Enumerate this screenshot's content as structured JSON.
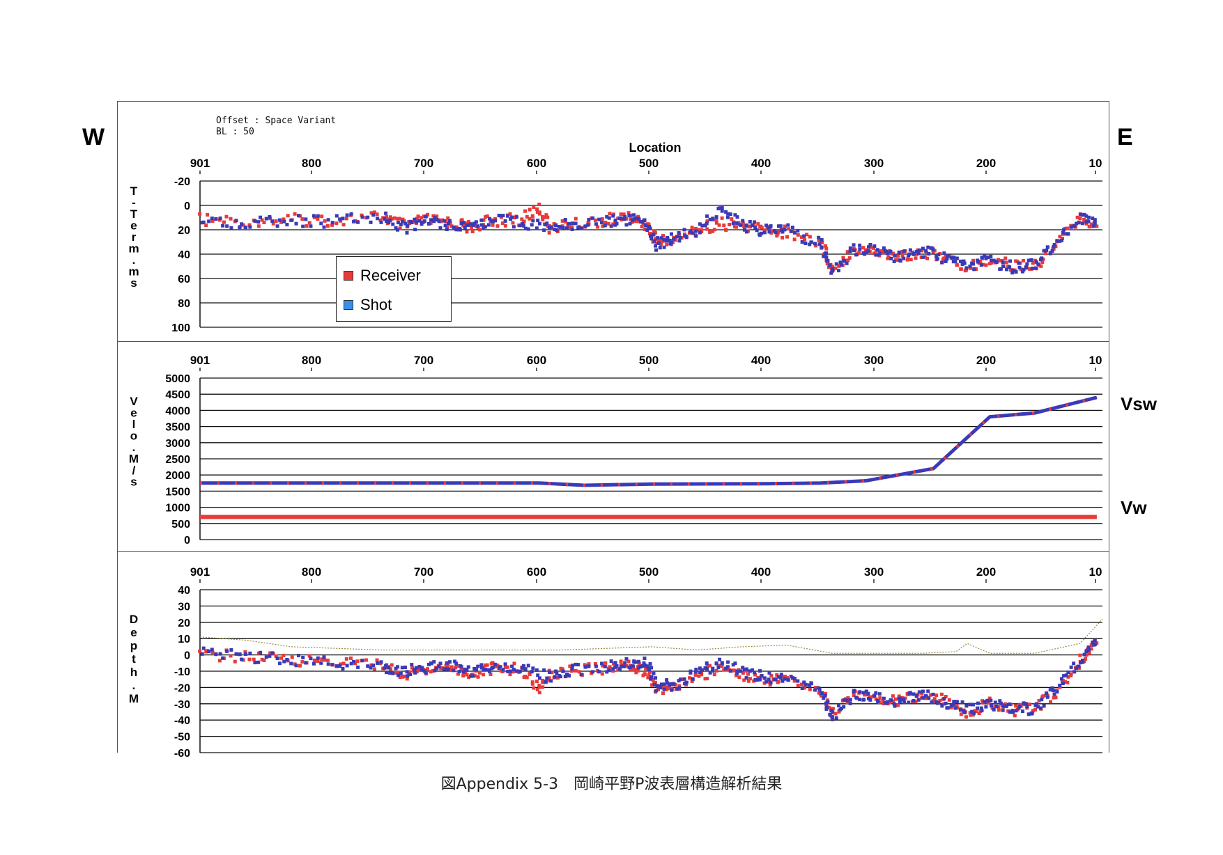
{
  "labels": {
    "west": "W",
    "east": "E",
    "vsw": "Vsw",
    "vw": "Vw",
    "offset_line": "Offset : Space Variant",
    "bl_line": "BL : 50",
    "location_title": "Location",
    "caption": "図Appendix 5-3　岡崎平野P波表層構造解析結果"
  },
  "legend": [
    {
      "label": "Receiver",
      "color": "#e83a3a"
    },
    {
      "label": "Shot",
      "color": "#3a8ee8"
    }
  ],
  "colors": {
    "receiver": "#e83a3a",
    "shot": "#3a3ab8",
    "elevation": "#9a8a3a"
  },
  "chart_data": [
    {
      "type": "scatter",
      "title": "",
      "xlabel": "Location",
      "ylabel": "T-Term. ms",
      "x_ticks": [
        "901",
        "800",
        "700",
        "600",
        "500",
        "400",
        "300",
        "200",
        "10"
      ],
      "xlim": [
        901,
        100
      ],
      "y_ticks": [
        "-20",
        "0",
        "20",
        "40",
        "60",
        "80",
        "100"
      ],
      "ylim": [
        -20,
        100
      ],
      "y_inverted": true,
      "grid": true,
      "series": [
        {
          "name": "Receiver",
          "x": [
            900,
            860,
            820,
            780,
            740,
            720,
            700,
            680,
            660,
            640,
            615,
            600,
            590,
            570,
            540,
            520,
            505,
            495,
            480,
            460,
            440,
            420,
            400,
            380,
            350,
            340,
            320,
            300,
            280,
            260,
            240,
            220,
            200,
            180,
            160,
            140,
            120,
            105
          ],
          "y": [
            12,
            13,
            12,
            12,
            9,
            17,
            12,
            14,
            18,
            12,
            12,
            2,
            18,
            16,
            12,
            10,
            15,
            30,
            28,
            20,
            15,
            17,
            20,
            22,
            30,
            52,
            36,
            38,
            42,
            38,
            43,
            52,
            44,
            50,
            50,
            30,
            8,
            18
          ]
        },
        {
          "name": "Shot",
          "x": [
            900,
            860,
            820,
            780,
            740,
            720,
            700,
            680,
            660,
            640,
            615,
            590,
            570,
            540,
            520,
            505,
            495,
            480,
            460,
            440,
            420,
            400,
            380,
            350,
            340,
            320,
            300,
            280,
            260,
            240,
            220,
            200,
            180,
            160,
            140,
            120,
            105
          ],
          "y": [
            13,
            14,
            13,
            13,
            10,
            18,
            13,
            15,
            17,
            13,
            13,
            19,
            15,
            13,
            11,
            14,
            32,
            27,
            21,
            3,
            16,
            21,
            21,
            31,
            55,
            37,
            37,
            43,
            37,
            44,
            50,
            45,
            51,
            48,
            30,
            10,
            14
          ]
        }
      ]
    },
    {
      "type": "line",
      "title": "",
      "xlabel": "",
      "ylabel": "Velo. M/s",
      "x_ticks": [
        "901",
        "800",
        "700",
        "600",
        "500",
        "400",
        "300",
        "200",
        "10"
      ],
      "xlim": [
        901,
        100
      ],
      "y_ticks": [
        "0",
        "500",
        "1000",
        "1500",
        "2000",
        "2500",
        "3000",
        "3500",
        "4000",
        "4500",
        "5000"
      ],
      "ylim": [
        0,
        5000
      ],
      "grid": true,
      "series": [
        {
          "name": "Vsw",
          "x": [
            901,
            600,
            560,
            500,
            400,
            350,
            310,
            250,
            200,
            160,
            105
          ],
          "y": [
            1750,
            1750,
            1680,
            1720,
            1730,
            1750,
            1820,
            2200,
            3800,
            3920,
            4400
          ]
        },
        {
          "name": "Vw",
          "x": [
            901,
            105
          ],
          "y": [
            700,
            700
          ]
        }
      ]
    },
    {
      "type": "scatter",
      "title": "",
      "xlabel": "",
      "ylabel": "Depth. M",
      "x_ticks": [
        "901",
        "800",
        "700",
        "600",
        "500",
        "400",
        "300",
        "200",
        "10"
      ],
      "xlim": [
        901,
        100
      ],
      "y_ticks": [
        "40",
        "30",
        "20",
        "10",
        "0",
        "-10",
        "-20",
        "-30",
        "-40",
        "-50",
        "-60"
      ],
      "ylim": [
        -60,
        40
      ],
      "grid": true,
      "series": [
        {
          "name": "Receiver",
          "x": [
            900,
            860,
            820,
            780,
            740,
            720,
            700,
            680,
            660,
            640,
            615,
            600,
            590,
            570,
            540,
            520,
            505,
            495,
            480,
            460,
            440,
            420,
            400,
            380,
            350,
            340,
            320,
            300,
            280,
            260,
            240,
            220,
            200,
            180,
            160,
            140,
            120,
            105
          ],
          "y": [
            0,
            -1,
            -3,
            -4,
            -6,
            -12,
            -9,
            -7,
            -12,
            -8,
            -9,
            -20,
            -12,
            -10,
            -8,
            -6,
            -10,
            -22,
            -20,
            -14,
            -7,
            -12,
            -15,
            -15,
            -22,
            -35,
            -25,
            -27,
            -28,
            -25,
            -28,
            -35,
            -30,
            -34,
            -33,
            -22,
            -5,
            10
          ]
        },
        {
          "name": "Shot",
          "x": [
            900,
            860,
            820,
            780,
            740,
            720,
            700,
            680,
            660,
            640,
            615,
            590,
            570,
            540,
            520,
            505,
            495,
            480,
            460,
            440,
            420,
            400,
            380,
            350,
            340,
            320,
            300,
            280,
            260,
            240,
            220,
            200,
            180,
            160,
            140,
            120,
            105
          ],
          "y": [
            1,
            -1,
            -3,
            -5,
            -7,
            -10,
            -8,
            -6,
            -10,
            -7,
            -8,
            -14,
            -9,
            -7,
            -5,
            -4,
            -20,
            -18,
            -12,
            -5,
            -10,
            -14,
            -14,
            -23,
            -38,
            -24,
            -26,
            -29,
            -24,
            -29,
            -33,
            -31,
            -32,
            -34,
            -20,
            -3,
            8
          ]
        },
        {
          "name": "Elevation",
          "x": [
            901,
            860,
            820,
            780,
            740,
            700,
            660,
            620,
            580,
            540,
            500,
            460,
            420,
            380,
            340,
            300,
            260,
            230,
            220,
            200,
            160,
            140,
            120,
            100
          ],
          "y": [
            11,
            9,
            5,
            4,
            3,
            3,
            3,
            3,
            3,
            4,
            5,
            3,
            5,
            6,
            1,
            1,
            1,
            2,
            7,
            1,
            1,
            4,
            7,
            22
          ]
        }
      ]
    }
  ]
}
